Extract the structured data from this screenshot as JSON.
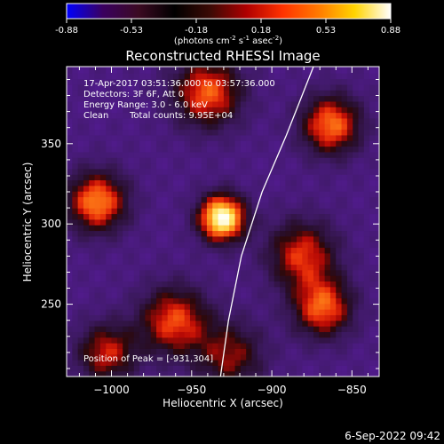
{
  "colorbar": {
    "ticks": [
      "-0.88",
      "-0.53",
      "-0.18",
      "0.18",
      "0.53",
      "0.88"
    ],
    "range": [
      -0.88,
      0.88
    ],
    "unit": {
      "open": "(photons cm",
      "exp1": "-2",
      "mid1": " s",
      "exp2": "-1",
      "mid2": " asec",
      "exp3": "-2",
      "close": ")"
    },
    "gradient_stops": [
      "#0000ff",
      "#3a0060",
      "#3b0a22",
      "#000000",
      "#3c0a05",
      "#b00000",
      "#ff3200",
      "#ff7a00",
      "#ffd400",
      "#ffffff"
    ]
  },
  "title": "Reconstructed RHESSI Image",
  "info": {
    "time": "17-Apr-2017 03:51:36.000 to 03:57:36.000",
    "detectors": "Detectors: 3F 6F, Att 0",
    "energy": "Energy Range: 3.0 - 6.0 keV",
    "clean": "Clean",
    "counts": "Total counts: 9.95E+04",
    "peak": "Position of Peak = [-931,304]"
  },
  "footer": {
    "date": "6-Sep-2022 09:42"
  },
  "chart_data": {
    "type": "heatmap",
    "title": "Reconstructed RHESSI Image",
    "xlabel": "Heliocentric X (arcsec)",
    "ylabel": "Heliocentric Y (arcsec)",
    "xlim": [
      -1028,
      -833
    ],
    "ylim": [
      205,
      398
    ],
    "x_ticks": [
      -1000,
      -950,
      -900,
      -850
    ],
    "y_ticks": [
      250,
      300,
      350
    ],
    "x_tick_labels": [
      "−1000",
      "−950",
      "−900",
      "−850"
    ],
    "y_tick_labels": [
      "250",
      "300",
      "350"
    ],
    "value_range": [
      -0.88,
      0.88
    ],
    "peak_value": 0.88,
    "peak_position": [
      -931,
      304
    ],
    "sources": [
      {
        "x": -931,
        "y": 304,
        "value": 0.88
      },
      {
        "x": -1009,
        "y": 314,
        "value": 0.45
      },
      {
        "x": -940,
        "y": 382,
        "value": 0.35
      },
      {
        "x": -863,
        "y": 362,
        "value": 0.4
      },
      {
        "x": -881,
        "y": 281,
        "value": 0.25
      },
      {
        "x": -868,
        "y": 248,
        "value": 0.35
      },
      {
        "x": -961,
        "y": 240,
        "value": 0.3
      },
      {
        "x": -1003,
        "y": 220,
        "value": 0.2
      },
      {
        "x": -926,
        "y": 218,
        "value": 0.1
      }
    ],
    "limb_curve": [
      [
        -932,
        205
      ],
      [
        -927,
        240
      ],
      [
        -919,
        280
      ],
      [
        -906,
        320
      ],
      [
        -891,
        355
      ],
      [
        -874,
        398
      ]
    ],
    "grid": false
  }
}
